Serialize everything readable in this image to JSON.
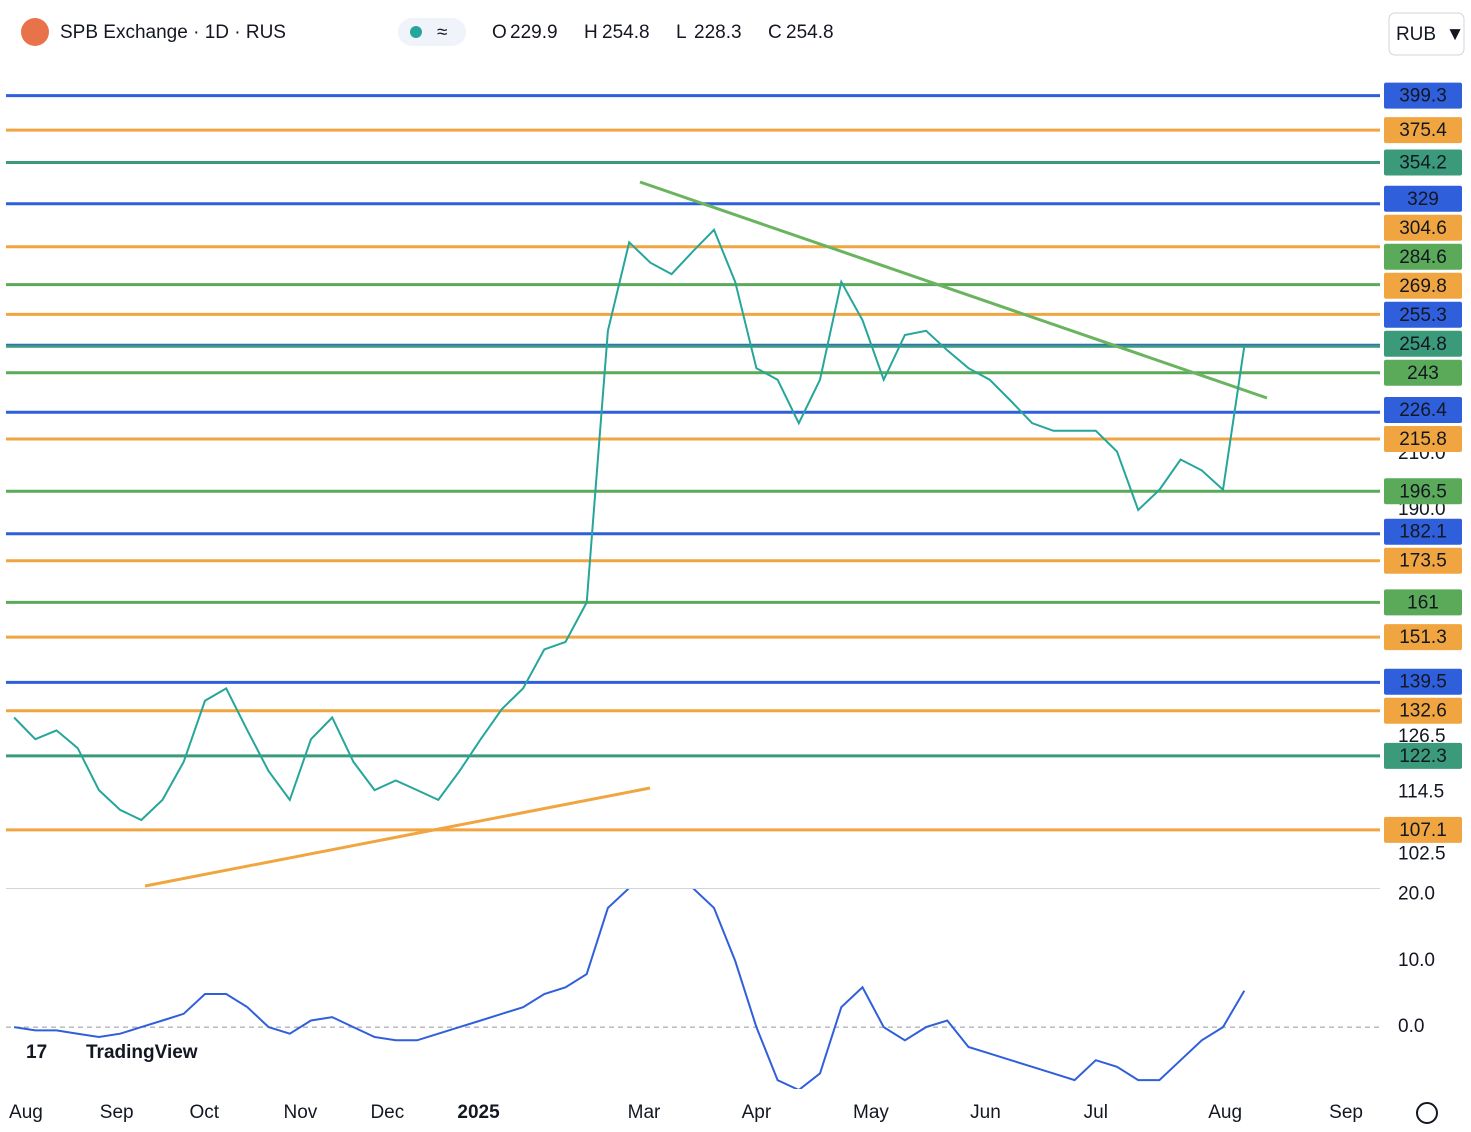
{
  "header": {
    "symbol": "SPB Exchange · 1D · RUS",
    "ohlc": [
      {
        "label": "O",
        "value": 229.9
      },
      {
        "label": "H",
        "value": 254.8
      },
      {
        "label": "L",
        "value": 228.3
      },
      {
        "label": "C",
        "value": 254.8
      }
    ],
    "currency": "RUB",
    "watermark": "TradingView"
  },
  "chart_data": [
    {
      "type": "line",
      "log": true,
      "color": "#26a69a",
      "values": [
        131,
        126,
        128,
        124,
        115,
        111,
        109,
        113,
        121,
        135,
        138,
        128,
        119,
        113,
        126,
        131,
        121,
        115,
        117,
        115,
        113,
        119,
        126,
        133,
        138,
        148,
        150,
        161,
        262,
        307,
        296,
        290,
        302,
        314,
        286,
        245,
        240,
        222,
        240,
        286,
        267,
        240,
        260,
        262,
        253,
        245,
        240,
        231,
        222,
        219,
        219,
        219,
        211,
        190,
        197,
        208,
        204,
        197,
        254.8
      ],
      "xlim": [
        -0.38,
        64.4
      ],
      "xticks": [
        {
          "value": 0.56,
          "label": "Aug"
        },
        {
          "value": 4.84,
          "label": "Sep"
        },
        {
          "value": 8.97,
          "label": "Oct"
        },
        {
          "value": 13.5,
          "label": "Nov"
        },
        {
          "value": 17.6,
          "label": "Dec"
        },
        {
          "value": 21.9,
          "label": "2025"
        },
        {
          "value": 29.7,
          "label": "Mar"
        },
        {
          "value": 35.0,
          "label": "Apr"
        },
        {
          "value": 40.4,
          "label": "May"
        },
        {
          "value": 45.8,
          "label": "Jun"
        },
        {
          "value": 51.0,
          "label": "Jul"
        },
        {
          "value": 57.1,
          "label": "Aug"
        },
        {
          "value": 62.8,
          "label": "Sep"
        }
      ],
      "ylim": [
        96.5,
        474
      ],
      "yticks": [
        102.5,
        114.5,
        126.5,
        {
          "value": 190,
          "label": "190.0"
        },
        {
          "value": 210,
          "label": "210.0"
        }
      ],
      "levels": [
        {
          "value": 399.3,
          "color": "#2f5fdb"
        },
        {
          "value": 375.4,
          "color": "#f0a540"
        },
        {
          "value": 354.2,
          "color": "#3a9a7a"
        },
        {
          "value": 329.0,
          "color": "#2f5fdb"
        },
        {
          "value": 304.6,
          "color": "#f0a540"
        },
        {
          "value": 284.6,
          "color": "#5aaa5a"
        },
        {
          "value": 269.8,
          "color": "#f0a540"
        },
        {
          "value": 255.3,
          "color": "#2f5fdb"
        },
        {
          "value": 254.8,
          "color": "#3a9a7a"
        },
        {
          "value": 243.0,
          "color": "#5aaa5a"
        },
        {
          "value": 226.4,
          "color": "#2f5fdb"
        },
        {
          "value": 215.8,
          "color": "#f0a540"
        },
        {
          "value": 196.5,
          "color": "#5aaa5a"
        },
        {
          "value": 182.1,
          "color": "#2f5fdb"
        },
        {
          "value": 173.5,
          "color": "#f0a540"
        },
        {
          "value": 161.0,
          "color": "#5aaa5a"
        },
        {
          "value": 151.3,
          "color": "#f0a540"
        },
        {
          "value": 139.5,
          "color": "#2f5fdb"
        },
        {
          "value": 132.6,
          "color": "#f0a540"
        },
        {
          "value": 122.3,
          "color": "#3a9a7a"
        },
        {
          "value": 107.1,
          "color": "#f0a540"
        }
      ]
    },
    {
      "type": "line",
      "color": "#2f5fdb",
      "values": [
        0,
        -0.5,
        -0.5,
        -1,
        -1.5,
        -1,
        0,
        1,
        2,
        5,
        5,
        3,
        0,
        -1,
        1,
        1.5,
        0,
        -1.5,
        -2,
        -2,
        -1,
        0,
        1,
        2,
        3,
        5,
        6,
        8,
        18,
        21,
        21,
        21,
        21,
        18,
        10,
        0,
        -8,
        -9.5,
        -7,
        3,
        6,
        0,
        -2,
        0,
        1,
        -3,
        -4,
        -5,
        -6,
        -7,
        -8,
        -5,
        -6,
        -8,
        -8,
        -5,
        -2,
        0,
        5.5
      ],
      "ylim": [
        -9.5,
        21
      ],
      "yticks": [
        {
          "value": 20,
          "label": "20.0"
        },
        {
          "value": 10,
          "label": "10.0"
        },
        {
          "value": 0,
          "label": "0.0"
        }
      ]
    }
  ]
}
